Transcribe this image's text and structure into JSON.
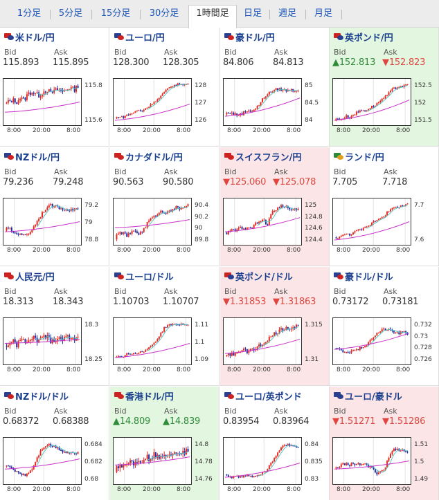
{
  "tabs": [
    {
      "label": "1分足",
      "active": false
    },
    {
      "label": "5分足",
      "active": false
    },
    {
      "label": "15分足",
      "active": false
    },
    {
      "label": "30分足",
      "active": false
    },
    {
      "label": "1時間足",
      "active": true
    },
    {
      "label": "日足",
      "active": false
    },
    {
      "label": "週足",
      "active": false
    },
    {
      "label": "月足",
      "active": false
    }
  ],
  "labels": {
    "bid": "Bid",
    "ask": "Ask"
  },
  "colors": {
    "up": "#2e8b3a",
    "down": "#e0463f",
    "candle_up": "#e8281e",
    "candle_down": "#1f2fa6",
    "ma_short": "#5cc4c4",
    "ma_long": "#c830c8",
    "bg_up": "#e3f6df",
    "bg_down": "#fce5e6"
  },
  "x_ticks": [
    "8:00",
    "20:00",
    "8:00"
  ],
  "pairs": [
    {
      "name": "米ドル/円",
      "flag": [
        "#c22",
        "#2a3f8f"
      ],
      "bid": "115.893",
      "ask": "115.895",
      "dir": "none",
      "y_ticks": [
        "115.8",
        "115.6"
      ],
      "shape": [
        0.45,
        0.5,
        0.55,
        0.5,
        0.6,
        0.55,
        0.7,
        0.75,
        0.7,
        0.65,
        0.75,
        0.8,
        0.72,
        0.78,
        0.8,
        0.75,
        0.82,
        0.85,
        0.8,
        0.9
      ],
      "noise": 0.12,
      "ma": [
        0.25,
        0.5
      ]
    },
    {
      "name": "ユーロ/円",
      "flag": [
        "#2a3f8f",
        "#c22"
      ],
      "bid": "128.300",
      "ask": "128.305",
      "dir": "none",
      "y_ticks": [
        "128",
        "127",
        "126"
      ],
      "shape": [
        0.1,
        0.15,
        0.12,
        0.18,
        0.2,
        0.25,
        0.3,
        0.28,
        0.35,
        0.4,
        0.5,
        0.55,
        0.65,
        0.75,
        0.85,
        0.9,
        0.92,
        0.95,
        0.93,
        0.95
      ],
      "noise": 0.05,
      "ma": [
        0.05,
        0.45
      ]
    },
    {
      "name": "豪ドル/円",
      "flag": [
        "#2a3f8f",
        "#c22"
      ],
      "bid": "84.806",
      "ask": "84.813",
      "dir": "none",
      "y_ticks": [
        "85",
        "84.5",
        "84"
      ],
      "shape": [
        0.2,
        0.25,
        0.22,
        0.18,
        0.2,
        0.25,
        0.3,
        0.28,
        0.35,
        0.45,
        0.6,
        0.7,
        0.75,
        0.8,
        0.82,
        0.8,
        0.78,
        0.8,
        0.78,
        0.8
      ],
      "noise": 0.07,
      "ma": [
        0.15,
        0.6
      ]
    },
    {
      "name": "英ポンド/円",
      "flag": [
        "#c22",
        "#2a3f8f"
      ],
      "bid": "152.813",
      "ask": "152.823",
      "dir": "mixed",
      "y_ticks": [
        "152.5",
        "152",
        "151.5"
      ],
      "shape": [
        0.05,
        0.1,
        0.08,
        0.15,
        0.12,
        0.2,
        0.25,
        0.3,
        0.28,
        0.35,
        0.4,
        0.45,
        0.55,
        0.6,
        0.7,
        0.8,
        0.85,
        0.9,
        0.88,
        0.92
      ],
      "noise": 0.06,
      "ma": [
        0.05,
        0.55
      ]
    },
    {
      "name": "NZドル/円",
      "flag": [
        "#2a3f8f",
        "#c22"
      ],
      "bid": "79.236",
      "ask": "79.248",
      "dir": "none",
      "y_ticks": [
        "79.2",
        "79",
        "78.8"
      ],
      "shape": [
        0.3,
        0.35,
        0.25,
        0.2,
        0.22,
        0.15,
        0.2,
        0.3,
        0.45,
        0.6,
        0.75,
        0.85,
        0.9,
        0.88,
        0.85,
        0.8,
        0.82,
        0.78,
        0.8,
        0.82
      ],
      "noise": 0.07,
      "ma": [
        0.25,
        0.5
      ]
    },
    {
      "name": "カナダドル/円",
      "flag": [
        "#c22",
        "#c22"
      ],
      "bid": "90.563",
      "ask": "90.580",
      "dir": "none",
      "y_ticks": [
        "90.4",
        "90.2",
        "90",
        "89.8"
      ],
      "shape": [
        0.1,
        0.2,
        0.25,
        0.15,
        0.2,
        0.3,
        0.2,
        0.25,
        0.4,
        0.55,
        0.6,
        0.7,
        0.75,
        0.72,
        0.8,
        0.78,
        0.85,
        0.82,
        0.88,
        0.9
      ],
      "noise": 0.08,
      "ma": [
        0.35,
        0.55
      ]
    },
    {
      "name": "スイスフラン/円",
      "flag": [
        "#c22",
        "#c22"
      ],
      "bid": "125.060",
      "ask": "125.078",
      "dir": "down",
      "y_ticks": [
        "125",
        "124.8",
        "124.6",
        "124.4"
      ],
      "shape": [
        0.2,
        0.25,
        0.3,
        0.28,
        0.35,
        0.3,
        0.4,
        0.35,
        0.45,
        0.5,
        0.55,
        0.4,
        0.7,
        0.8,
        0.85,
        0.88,
        0.85,
        0.82,
        0.8,
        0.82
      ],
      "noise": 0.07,
      "ma": [
        0.25,
        0.6
      ]
    },
    {
      "name": "ランド/円",
      "flag": [
        "#2a8a3a",
        "#e0a020"
      ],
      "bid": "7.705",
      "ask": "7.718",
      "dir": "none",
      "y_ticks": [
        "7.7",
        "7.6"
      ],
      "shape": [
        0.1,
        0.12,
        0.15,
        0.2,
        0.18,
        0.25,
        0.28,
        0.3,
        0.35,
        0.4,
        0.5,
        0.55,
        0.6,
        0.65,
        0.75,
        0.82,
        0.85,
        0.88,
        0.9,
        0.92
      ],
      "noise": 0.05,
      "ma": [
        0.05,
        0.5
      ]
    },
    {
      "name": "人民元/円",
      "flag": [
        "#c22",
        "#c22"
      ],
      "bid": "18.313",
      "ask": "18.343",
      "dir": "none",
      "y_ticks": [
        "18.3",
        "18.25"
      ],
      "shape": [
        0.35,
        0.45,
        0.5,
        0.4,
        0.55,
        0.5,
        0.45,
        0.6,
        0.55,
        0.5,
        0.65,
        0.6,
        0.5,
        0.55,
        0.6,
        0.55,
        0.6,
        0.62,
        0.58,
        0.6
      ],
      "noise": 0.14,
      "ma": [
        0.45,
        0.55
      ]
    },
    {
      "name": "ユーロ/ドル",
      "flag": [
        "#2a3f8f",
        "#c22"
      ],
      "bid": "1.10703",
      "ask": "1.10707",
      "dir": "none",
      "y_ticks": [
        "1.11",
        "1.1",
        "1.09"
      ],
      "shape": [
        0.1,
        0.15,
        0.12,
        0.2,
        0.18,
        0.22,
        0.2,
        0.25,
        0.28,
        0.35,
        0.45,
        0.55,
        0.7,
        0.85,
        0.9,
        0.92,
        0.9,
        0.92,
        0.9,
        0.92
      ],
      "noise": 0.05,
      "ma": [
        0.1,
        0.45
      ]
    },
    {
      "name": "英ポンド/ドル",
      "flag": [
        "#c22",
        "#2a3f8f"
      ],
      "bid": "1.31853",
      "ask": "1.31863",
      "dir": "down",
      "y_ticks": [
        "1.315",
        "1.31"
      ],
      "shape": [
        0.15,
        0.2,
        0.15,
        0.25,
        0.2,
        0.3,
        0.25,
        0.35,
        0.3,
        0.4,
        0.45,
        0.55,
        0.6,
        0.7,
        0.75,
        0.8,
        0.85,
        0.82,
        0.85,
        0.88
      ],
      "noise": 0.1,
      "ma": [
        0.2,
        0.55
      ]
    },
    {
      "name": "豪ドル/ドル",
      "flag": [
        "#2a3f8f",
        "#c22"
      ],
      "bid": "0.73172",
      "ask": "0.73181",
      "dir": "none",
      "y_ticks": [
        "0.732",
        "0.73",
        "0.728",
        "0.726"
      ],
      "shape": [
        0.35,
        0.3,
        0.25,
        0.2,
        0.25,
        0.3,
        0.28,
        0.35,
        0.4,
        0.45,
        0.6,
        0.7,
        0.75,
        0.8,
        0.78,
        0.75,
        0.72,
        0.7,
        0.72,
        0.68
      ],
      "noise": 0.07,
      "ma": [
        0.3,
        0.7
      ]
    },
    {
      "name": "NZドル/ドル",
      "flag": [
        "#2a3f8f",
        "#c22"
      ],
      "bid": "0.68372",
      "ask": "0.68388",
      "dir": "none",
      "y_ticks": [
        "0.684",
        "0.682",
        "0.68"
      ],
      "shape": [
        0.4,
        0.35,
        0.3,
        0.25,
        0.2,
        0.15,
        0.2,
        0.3,
        0.5,
        0.7,
        0.85,
        0.9,
        0.88,
        0.85,
        0.8,
        0.75,
        0.7,
        0.72,
        0.68,
        0.7
      ],
      "noise": 0.07,
      "ma": [
        0.3,
        0.55
      ]
    },
    {
      "name": "香港ドル/円",
      "flag": [
        "#c22",
        "#c22"
      ],
      "bid": "14.809",
      "ask": "14.839",
      "dir": "up",
      "y_ticks": [
        "14.8",
        "14.78",
        "14.76"
      ],
      "shape": [
        0.3,
        0.4,
        0.35,
        0.45,
        0.5,
        0.4,
        0.55,
        0.5,
        0.6,
        0.55,
        0.65,
        0.6,
        0.55,
        0.65,
        0.7,
        0.68,
        0.72,
        0.75,
        0.7,
        0.75
      ],
      "noise": 0.15,
      "ma": [
        0.4,
        0.6
      ]
    },
    {
      "name": "ユーロ/英ポンド",
      "flag": [
        "#2a3f8f",
        "#c22"
      ],
      "bid": "0.83954",
      "ask": "0.83964",
      "dir": "none",
      "y_ticks": [
        "0.84",
        "0.835",
        "0.83"
      ],
      "shape": [
        0.15,
        0.12,
        0.1,
        0.12,
        0.1,
        0.12,
        0.15,
        0.12,
        0.15,
        0.18,
        0.2,
        0.3,
        0.45,
        0.6,
        0.75,
        0.85,
        0.9,
        0.88,
        0.85,
        0.8
      ],
      "noise": 0.05,
      "ma": [
        0.1,
        0.45
      ]
    },
    {
      "name": "ユーロ/豪ドル",
      "flag": [
        "#2a3f8f",
        "#2a3f8f"
      ],
      "bid": "1.51271",
      "ask": "1.51286",
      "dir": "down",
      "y_ticks": [
        "1.51",
        "1.5",
        "1.49"
      ],
      "shape": [
        0.3,
        0.35,
        0.4,
        0.45,
        0.4,
        0.45,
        0.4,
        0.45,
        0.4,
        0.35,
        0.3,
        0.2,
        0.25,
        0.3,
        0.55,
        0.75,
        0.8,
        0.78,
        0.75,
        0.72
      ],
      "noise": 0.07,
      "ma": [
        0.3,
        0.5
      ]
    }
  ]
}
